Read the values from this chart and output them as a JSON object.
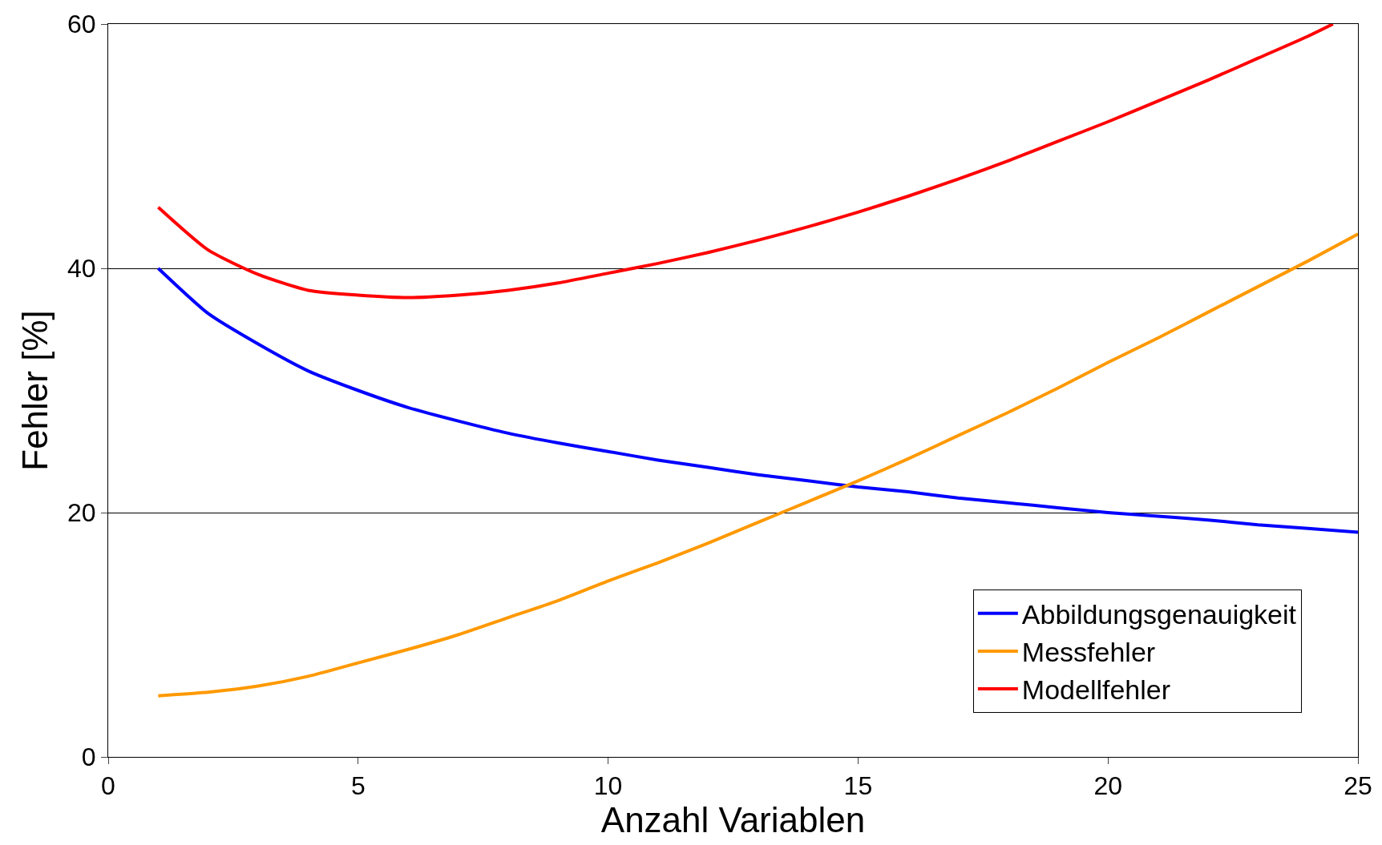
{
  "chart_data": {
    "type": "line",
    "xlabel": "Anzahl Variablen",
    "ylabel": "Fehler [%]",
    "xlim": [
      0,
      25
    ],
    "xticks": [
      0,
      5,
      10,
      15,
      20,
      25
    ],
    "ylim": [
      0,
      60
    ],
    "yticks": [
      0,
      20,
      40,
      60
    ],
    "grid": "y",
    "legend": "bottom right",
    "marker": "none",
    "line_style": "solid",
    "series": [
      {
        "name": "Abbildungsgenauigkeit",
        "color": "#0000ff",
        "x": [
          1,
          2,
          3,
          4,
          5,
          6,
          7,
          8,
          9,
          10,
          11,
          12,
          13,
          14,
          15,
          16,
          17,
          18,
          19,
          20,
          21,
          22,
          23,
          24,
          25
        ],
        "values": [
          40,
          36.3,
          33.8,
          31.6,
          30,
          28.6,
          27.5,
          26.5,
          25.7,
          25,
          24.3,
          23.7,
          23.1,
          22.6,
          22.1,
          21.7,
          21.2,
          20.8,
          20.4,
          20,
          19.7,
          19.4,
          19,
          18.7,
          18.4
        ]
      },
      {
        "name": "Messfehler",
        "color": "#ff9900",
        "x": [
          1,
          2,
          3,
          4,
          5,
          6,
          7,
          8,
          9,
          10,
          11,
          12,
          13,
          14,
          15,
          16,
          17,
          18,
          19,
          20,
          21,
          22,
          23,
          24,
          25
        ],
        "values": [
          5,
          5.3,
          5.8,
          6.6,
          7.7,
          8.8,
          10,
          11.4,
          12.8,
          14.4,
          15.9,
          17.5,
          19.2,
          20.9,
          22.6,
          24.4,
          26.3,
          28.2,
          30.2,
          32.3,
          34.3,
          36.4,
          38.5,
          40.6,
          42.8
        ]
      },
      {
        "name": "Modellfehler",
        "color": "#ff0000",
        "x": [
          1,
          2,
          3,
          4,
          5,
          6,
          7,
          8,
          9,
          10,
          11,
          12,
          13,
          14,
          15,
          16,
          17,
          18,
          19,
          20,
          21,
          22,
          23,
          24,
          24.5
        ],
        "values": [
          45,
          41.5,
          39.5,
          38.2,
          37.8,
          37.6,
          37.8,
          38.2,
          38.8,
          39.6,
          40.4,
          41.3,
          42.3,
          43.4,
          44.6,
          45.9,
          47.3,
          48.8,
          50.4,
          52,
          53.7,
          55.4,
          57.2,
          59,
          60
        ]
      }
    ]
  }
}
